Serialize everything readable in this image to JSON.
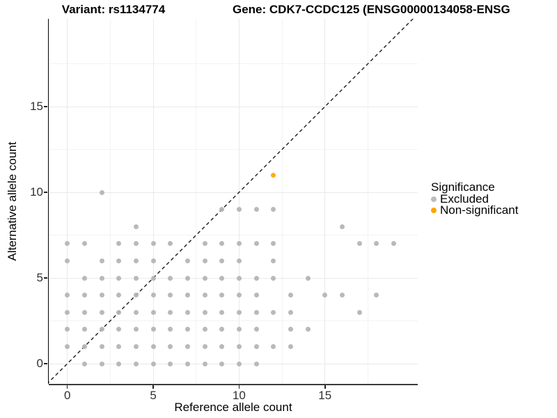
{
  "header": {
    "variant_title": "Variant: rs1134774",
    "gene_title": "Gene: CDK7-CCDC125 (ENSG00000134058-ENSG"
  },
  "chart_data": {
    "type": "scatter",
    "titles": {
      "left": "Variant: rs1134774",
      "right": "Gene: CDK7-CCDC125 (ENSG00000134058-ENSG"
    },
    "xlabel": "Reference allele count",
    "ylabel": "Alternative allele count",
    "xticks": [
      0,
      5,
      10,
      15
    ],
    "yticks": [
      0,
      5,
      10,
      15
    ],
    "xlim": [
      -1.2,
      20.5
    ],
    "ylim": [
      -1.2,
      20.3
    ],
    "grid": {
      "major": [
        0,
        5,
        10,
        15
      ],
      "minor": [
        2.5,
        7.5,
        12.5,
        17.5
      ]
    },
    "identity_line": {
      "style": "dashed",
      "from": -1.2,
      "to": 20.5,
      "color": "#1a1a1a"
    },
    "legend": {
      "title": "Significance",
      "position": "right",
      "items": [
        {
          "label": "Excluded",
          "color": "#bdbdbd"
        },
        {
          "label": "Non-significant",
          "color": "#ffa500"
        }
      ]
    },
    "series": [
      {
        "name": "Excluded",
        "color": "#b3b3b3",
        "points": [
          [
            1,
            0
          ],
          [
            2,
            0
          ],
          [
            3,
            0
          ],
          [
            4,
            0
          ],
          [
            5,
            0
          ],
          [
            6,
            0
          ],
          [
            7,
            0
          ],
          [
            8,
            0
          ],
          [
            9,
            0
          ],
          [
            10,
            0
          ],
          [
            11,
            0
          ],
          [
            0,
            1
          ],
          [
            1,
            1
          ],
          [
            2,
            1
          ],
          [
            3,
            1
          ],
          [
            4,
            1
          ],
          [
            5,
            1
          ],
          [
            6,
            1
          ],
          [
            7,
            1
          ],
          [
            8,
            1
          ],
          [
            9,
            1
          ],
          [
            10,
            1
          ],
          [
            11,
            1
          ],
          [
            12,
            1
          ],
          [
            13,
            1
          ],
          [
            0,
            2
          ],
          [
            1,
            2
          ],
          [
            2,
            2
          ],
          [
            3,
            2
          ],
          [
            4,
            2
          ],
          [
            5,
            2
          ],
          [
            6,
            2
          ],
          [
            7,
            2
          ],
          [
            8,
            2
          ],
          [
            9,
            2
          ],
          [
            10,
            2
          ],
          [
            11,
            2
          ],
          [
            13,
            2
          ],
          [
            14,
            2
          ],
          [
            0,
            3
          ],
          [
            1,
            3
          ],
          [
            2,
            3
          ],
          [
            3,
            3
          ],
          [
            4,
            3
          ],
          [
            5,
            3
          ],
          [
            6,
            3
          ],
          [
            7,
            3
          ],
          [
            8,
            3
          ],
          [
            9,
            3
          ],
          [
            10,
            3
          ],
          [
            11,
            3
          ],
          [
            12,
            3
          ],
          [
            13,
            3
          ],
          [
            17,
            3
          ],
          [
            0,
            4
          ],
          [
            1,
            4
          ],
          [
            2,
            4
          ],
          [
            3,
            4
          ],
          [
            4,
            4
          ],
          [
            5,
            4
          ],
          [
            6,
            4
          ],
          [
            7,
            4
          ],
          [
            8,
            4
          ],
          [
            9,
            4
          ],
          [
            10,
            4
          ],
          [
            11,
            4
          ],
          [
            13,
            4
          ],
          [
            15,
            4
          ],
          [
            16,
            4
          ],
          [
            18,
            4
          ],
          [
            1,
            5
          ],
          [
            2,
            5
          ],
          [
            3,
            5
          ],
          [
            4,
            5
          ],
          [
            5,
            5
          ],
          [
            6,
            5
          ],
          [
            7,
            5
          ],
          [
            8,
            5
          ],
          [
            9,
            5
          ],
          [
            10,
            5
          ],
          [
            11,
            5
          ],
          [
            12,
            5
          ],
          [
            14,
            5
          ],
          [
            0,
            6
          ],
          [
            2,
            6
          ],
          [
            3,
            6
          ],
          [
            4,
            6
          ],
          [
            5,
            6
          ],
          [
            7,
            6
          ],
          [
            8,
            6
          ],
          [
            9,
            6
          ],
          [
            10,
            6
          ],
          [
            12,
            6
          ],
          [
            0,
            7
          ],
          [
            1,
            7
          ],
          [
            3,
            7
          ],
          [
            4,
            7
          ],
          [
            5,
            7
          ],
          [
            6,
            7
          ],
          [
            8,
            7
          ],
          [
            9,
            7
          ],
          [
            10,
            7
          ],
          [
            11,
            7
          ],
          [
            12,
            7
          ],
          [
            17,
            7
          ],
          [
            18,
            7
          ],
          [
            19,
            7
          ],
          [
            4,
            8
          ],
          [
            16,
            8
          ],
          [
            9,
            9
          ],
          [
            10,
            9
          ],
          [
            11,
            9
          ],
          [
            12,
            9
          ],
          [
            2,
            10
          ]
        ]
      },
      {
        "name": "Non-significant",
        "color": "#ffa500",
        "points": [
          [
            12,
            11
          ]
        ]
      }
    ]
  }
}
